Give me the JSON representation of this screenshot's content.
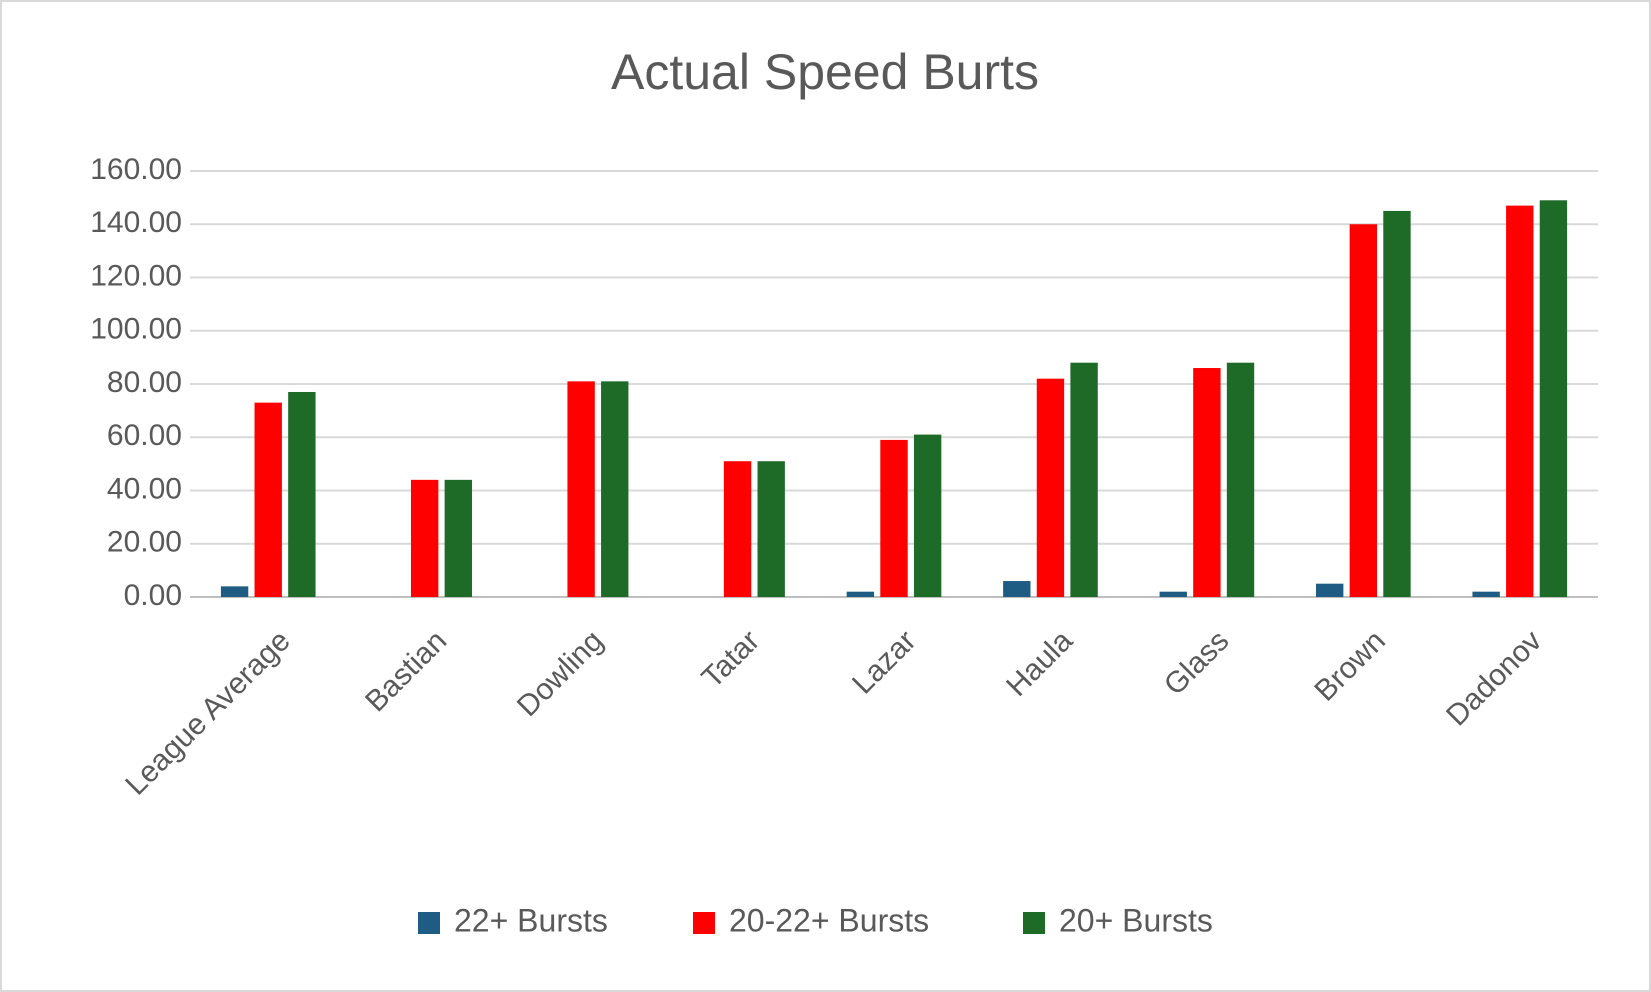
{
  "chart_data": {
    "type": "bar",
    "title": "Actual Speed Burts",
    "categories": [
      "League Average",
      "Bastian",
      "Dowling",
      "Tatar",
      "Lazar",
      "Haula",
      "Glass",
      "Brown",
      "Dadonov"
    ],
    "series": [
      {
        "name": "22+ Bursts",
        "color": "#1f5c84",
        "values": [
          4,
          0,
          0,
          0,
          2,
          6,
          2,
          5,
          2
        ]
      },
      {
        "name": "20-22+ Bursts",
        "color": "#ff0000",
        "values": [
          73,
          44,
          81,
          51,
          59,
          82,
          86,
          140,
          147
        ]
      },
      {
        "name": "20+ Bursts",
        "color": "#1e6b28",
        "values": [
          77,
          44,
          81,
          51,
          61,
          88,
          88,
          145,
          149
        ]
      }
    ],
    "ylim": [
      0,
      160
    ],
    "yticks": [
      {
        "value": 0,
        "label": "0.00"
      },
      {
        "value": 20,
        "label": "20.00"
      },
      {
        "value": 40,
        "label": "40.00"
      },
      {
        "value": 60,
        "label": "60.00"
      },
      {
        "value": 80,
        "label": "80.00"
      },
      {
        "value": 100,
        "label": "100.00"
      },
      {
        "value": 120,
        "label": "120.00"
      },
      {
        "value": 140,
        "label": "140.00"
      },
      {
        "value": 160,
        "label": "160.00"
      }
    ],
    "grid": true,
    "legend": "bottom"
  }
}
